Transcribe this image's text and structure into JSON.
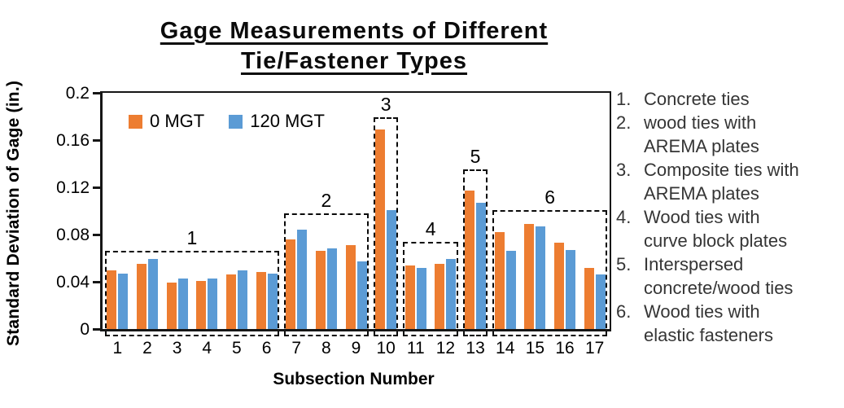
{
  "title": {
    "line1": "Gage Measurements of Different",
    "line2": "Tie/Fastener Types"
  },
  "chart_data": {
    "type": "bar",
    "title": "Gage Measurements of Different Tie/Fastener Types",
    "xlabel": "Subsection Number",
    "ylabel": "Standard Deviation of Gage (in.)",
    "categories": [
      "1",
      "2",
      "3",
      "4",
      "5",
      "6",
      "7",
      "8",
      "9",
      "10",
      "11",
      "12",
      "13",
      "14",
      "15",
      "16",
      "17"
    ],
    "series": [
      {
        "name": "0 MGT",
        "color": "#ED7D31",
        "values": [
          0.05,
          0.055,
          0.039,
          0.041,
          0.046,
          0.048,
          0.076,
          0.066,
          0.071,
          0.169,
          0.054,
          0.055,
          0.117,
          0.082,
          0.089,
          0.073,
          0.052
        ]
      },
      {
        "name": "120 MGT",
        "color": "#5B9BD5",
        "values": [
          0.047,
          0.059,
          0.043,
          0.043,
          0.05,
          0.047,
          0.084,
          0.068,
          0.057,
          0.101,
          0.052,
          0.059,
          0.107,
          0.066,
          0.087,
          0.067,
          0.046
        ]
      }
    ],
    "ylim": [
      0,
      0.2
    ],
    "yticks": [
      "0",
      "0.04",
      "0.08",
      "0.12",
      "0.16",
      "0.2"
    ],
    "grid": false,
    "legend_position": "top-left-inside",
    "annotations": {
      "groups": [
        {
          "label": "1",
          "from": 1,
          "to": 6,
          "top": 0.066
        },
        {
          "label": "2",
          "from": 7,
          "to": 9,
          "top": 0.098
        },
        {
          "label": "3",
          "from": 10,
          "to": 10,
          "top": 0.179
        },
        {
          "label": "4",
          "from": 11,
          "to": 12,
          "top": 0.074
        },
        {
          "label": "5",
          "from": 13,
          "to": 13,
          "top": 0.135
        },
        {
          "label": "6",
          "from": 14,
          "to": 17,
          "top": 0.101
        }
      ]
    }
  },
  "side_list": {
    "items": [
      {
        "num": "1.",
        "text": "Concrete ties",
        "lines": [
          "Concrete ties"
        ]
      },
      {
        "num": "2.",
        "text": "wood ties with AREMA plates",
        "lines": [
          "wood ties with",
          "AREMA plates"
        ]
      },
      {
        "num": "3.",
        "text": "Composite ties with AREMA plates",
        "lines": [
          "Composite ties with",
          "AREMA plates"
        ]
      },
      {
        "num": "4.",
        "text": "Wood ties with curve block plates",
        "lines": [
          "Wood ties with",
          "curve block plates"
        ]
      },
      {
        "num": "5.",
        "text": "Interspersed concrete/wood ties",
        "lines": [
          "Interspersed",
          "concrete/wood ties"
        ]
      },
      {
        "num": "6.",
        "text": "Wood ties with elastic fasteners",
        "lines": [
          "Wood ties with",
          "elastic fasteners"
        ]
      }
    ]
  }
}
